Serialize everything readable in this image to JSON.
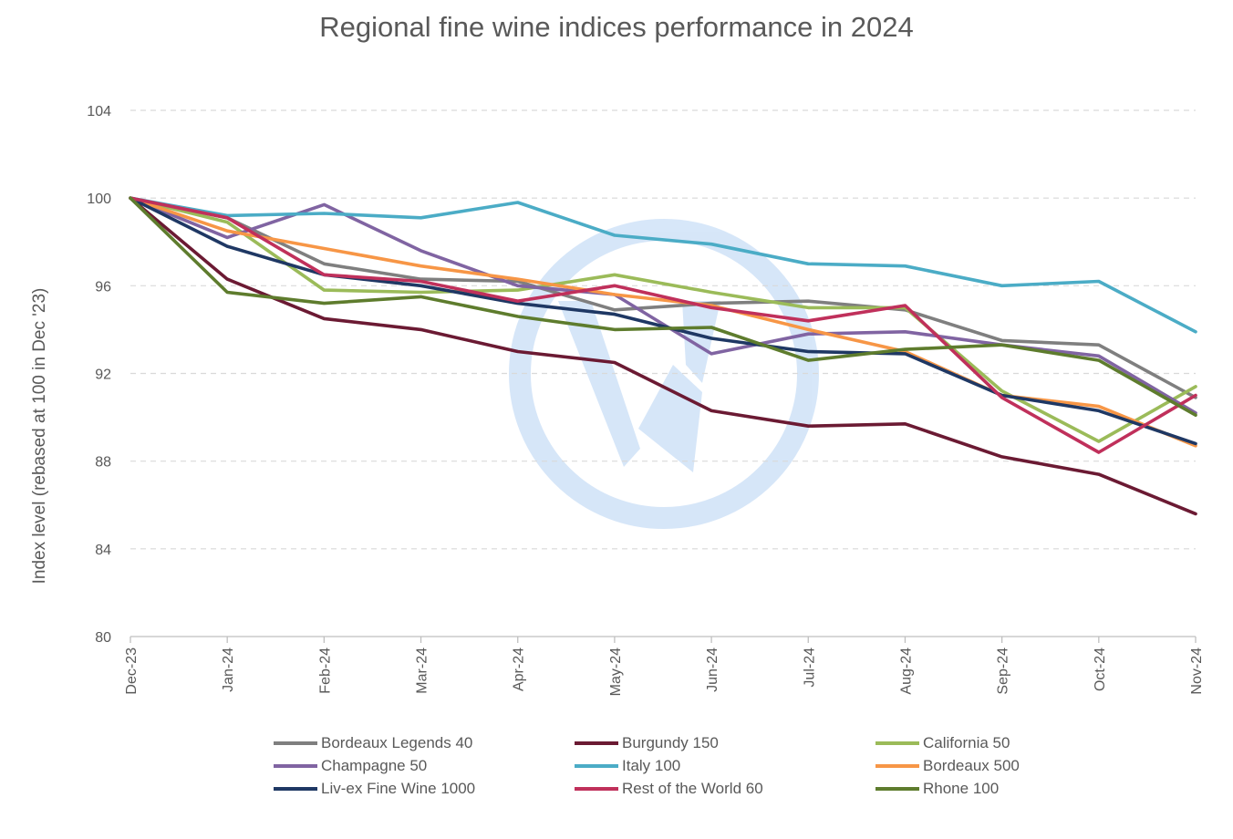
{
  "chart_data": {
    "type": "line",
    "title": "Regional fine wine indices performance in 2024",
    "xlabel": "",
    "ylabel": "Index level (rebased at 100 in Dec '23)",
    "ylim": [
      80,
      104
    ],
    "yticks": [
      80,
      84,
      88,
      92,
      96,
      100,
      104
    ],
    "grid": "horizontal dashed",
    "legend_position": "bottom",
    "categories": [
      "Dec-23",
      "Jan-24",
      "Feb-24",
      "Mar-24",
      "Apr-24",
      "May-24",
      "Jun-24",
      "Jul-24",
      "Aug-24",
      "Sep-24",
      "Oct-24",
      "Nov-24"
    ],
    "series": [
      {
        "name": "Bordeaux Legends 40",
        "color": "#7f7f7f",
        "values": [
          100,
          99.1,
          97.0,
          96.3,
          96.2,
          94.9,
          95.2,
          95.3,
          94.9,
          93.5,
          93.3,
          90.9
        ]
      },
      {
        "name": "Burgundy 150",
        "color": "#6b1a33",
        "values": [
          100,
          96.3,
          94.5,
          94.0,
          93.0,
          92.5,
          90.3,
          89.6,
          89.7,
          88.2,
          87.4,
          85.6
        ]
      },
      {
        "name": "California 50",
        "color": "#9bbb59",
        "values": [
          100,
          98.9,
          95.8,
          95.7,
          95.8,
          96.5,
          95.7,
          95.0,
          95.0,
          91.2,
          88.9,
          91.4
        ]
      },
      {
        "name": "Champagne 50",
        "color": "#8064a2",
        "values": [
          100,
          98.2,
          99.7,
          97.6,
          96.0,
          95.6,
          92.9,
          93.8,
          93.9,
          93.3,
          92.8,
          90.2
        ]
      },
      {
        "name": "Italy 100",
        "color": "#4bacc6",
        "values": [
          100,
          99.2,
          99.3,
          99.1,
          99.8,
          98.3,
          97.9,
          97.0,
          96.9,
          96.0,
          96.2,
          93.9
        ]
      },
      {
        "name": "Bordeaux 500",
        "color": "#f79646",
        "values": [
          100,
          98.5,
          97.7,
          96.9,
          96.3,
          95.6,
          95.1,
          94.0,
          93.0,
          91.0,
          90.5,
          88.7
        ]
      },
      {
        "name": "Liv-ex Fine Wine 1000",
        "color": "#1f3864",
        "values": [
          100,
          97.8,
          96.5,
          96.0,
          95.2,
          94.7,
          93.6,
          93.0,
          92.9,
          91.0,
          90.3,
          88.8
        ]
      },
      {
        "name": "Rest of the World 60",
        "color": "#c0305b",
        "values": [
          100,
          99.1,
          96.5,
          96.2,
          95.3,
          96.0,
          95.0,
          94.4,
          95.1,
          90.9,
          88.4,
          91.0
        ]
      },
      {
        "name": "Rhone 100",
        "color": "#5e7c2d",
        "values": [
          100,
          95.7,
          95.2,
          95.5,
          94.6,
          94.0,
          94.1,
          92.6,
          93.1,
          93.3,
          92.6,
          90.1
        ]
      }
    ]
  }
}
